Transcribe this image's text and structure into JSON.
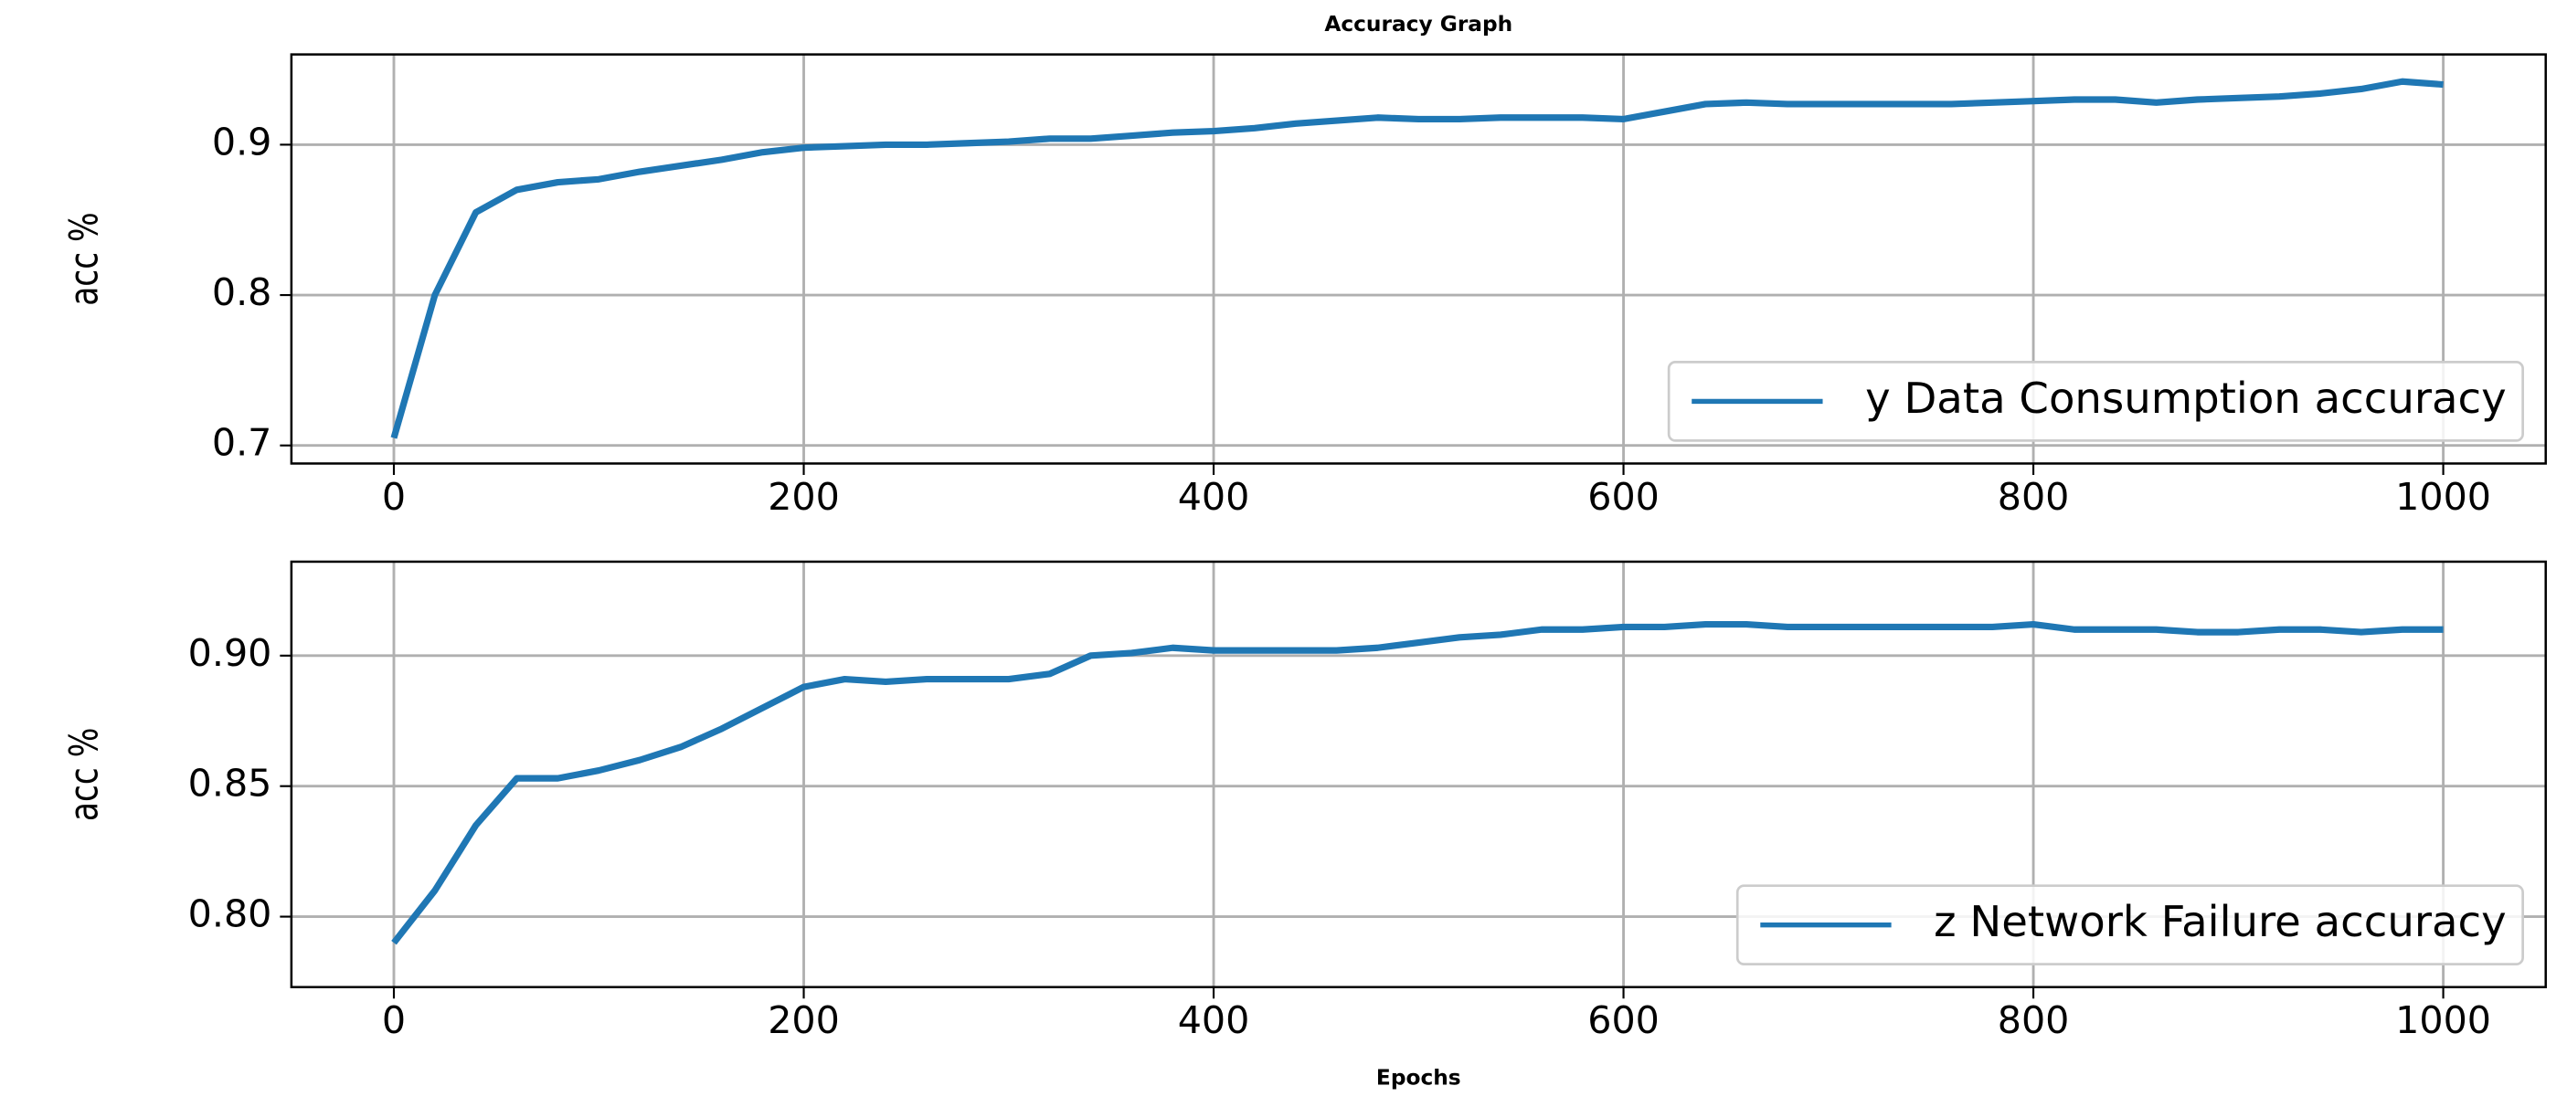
{
  "chart_data": [
    {
      "type": "line",
      "title": "Accuracy Graph",
      "ylabel": "acc %",
      "x": [
        0,
        20,
        40,
        60,
        80,
        100,
        120,
        140,
        160,
        180,
        200,
        220,
        240,
        260,
        280,
        300,
        320,
        340,
        360,
        380,
        400,
        420,
        440,
        460,
        480,
        500,
        520,
        540,
        560,
        580,
        600,
        620,
        640,
        660,
        680,
        700,
        720,
        740,
        760,
        780,
        800,
        820,
        840,
        860,
        880,
        900,
        920,
        940,
        960,
        980,
        1000
      ],
      "series": [
        {
          "name": "y Data Consumption accuracy",
          "color": "#1f77b4",
          "values": [
            0.705,
            0.8,
            0.855,
            0.87,
            0.875,
            0.877,
            0.882,
            0.886,
            0.89,
            0.895,
            0.898,
            0.899,
            0.9,
            0.9,
            0.901,
            0.902,
            0.904,
            0.904,
            0.906,
            0.908,
            0.909,
            0.911,
            0.914,
            0.916,
            0.918,
            0.917,
            0.917,
            0.918,
            0.918,
            0.918,
            0.917,
            0.922,
            0.927,
            0.928,
            0.927,
            0.927,
            0.927,
            0.927,
            0.927,
            0.928,
            0.929,
            0.93,
            0.93,
            0.928,
            0.93,
            0.931,
            0.932,
            0.934,
            0.937,
            0.942,
            0.94
          ]
        }
      ],
      "xlim": [
        -50,
        1050
      ],
      "xticks": [
        0,
        200,
        400,
        600,
        800,
        1000
      ],
      "ylim": [
        0.688,
        0.96
      ],
      "yticks": [
        0.7,
        0.8,
        0.9
      ],
      "grid": true,
      "legend": "lower right"
    },
    {
      "type": "line",
      "ylabel": "acc %",
      "xlabel": "Epochs",
      "x": [
        0,
        20,
        40,
        60,
        80,
        100,
        120,
        140,
        160,
        180,
        200,
        220,
        240,
        260,
        280,
        300,
        320,
        340,
        360,
        380,
        400,
        420,
        440,
        460,
        480,
        500,
        520,
        540,
        560,
        580,
        600,
        620,
        640,
        660,
        680,
        700,
        720,
        740,
        760,
        780,
        800,
        820,
        840,
        860,
        880,
        900,
        920,
        940,
        960,
        980,
        1000
      ],
      "series": [
        {
          "name": "z Network Failure accuracy",
          "color": "#1f77b4",
          "values": [
            0.79,
            0.81,
            0.835,
            0.853,
            0.853,
            0.856,
            0.86,
            0.865,
            0.872,
            0.88,
            0.888,
            0.891,
            0.89,
            0.891,
            0.891,
            0.891,
            0.893,
            0.9,
            0.901,
            0.903,
            0.902,
            0.902,
            0.902,
            0.902,
            0.903,
            0.905,
            0.907,
            0.908,
            0.91,
            0.91,
            0.911,
            0.911,
            0.912,
            0.912,
            0.911,
            0.911,
            0.911,
            0.911,
            0.911,
            0.911,
            0.912,
            0.91,
            0.91,
            0.91,
            0.909,
            0.909,
            0.91,
            0.91,
            0.909,
            0.91,
            0.91
          ]
        }
      ],
      "xlim": [
        -50,
        1050
      ],
      "xticks": [
        0,
        200,
        400,
        600,
        800,
        1000
      ],
      "ylim": [
        0.773,
        0.936
      ],
      "yticks": [
        {
          "value": 0.8,
          "label": "0.80"
        },
        {
          "value": 0.85,
          "label": "0.85"
        },
        {
          "value": 0.9,
          "label": "0.90"
        }
      ],
      "grid": true,
      "legend": "lower right"
    }
  ]
}
